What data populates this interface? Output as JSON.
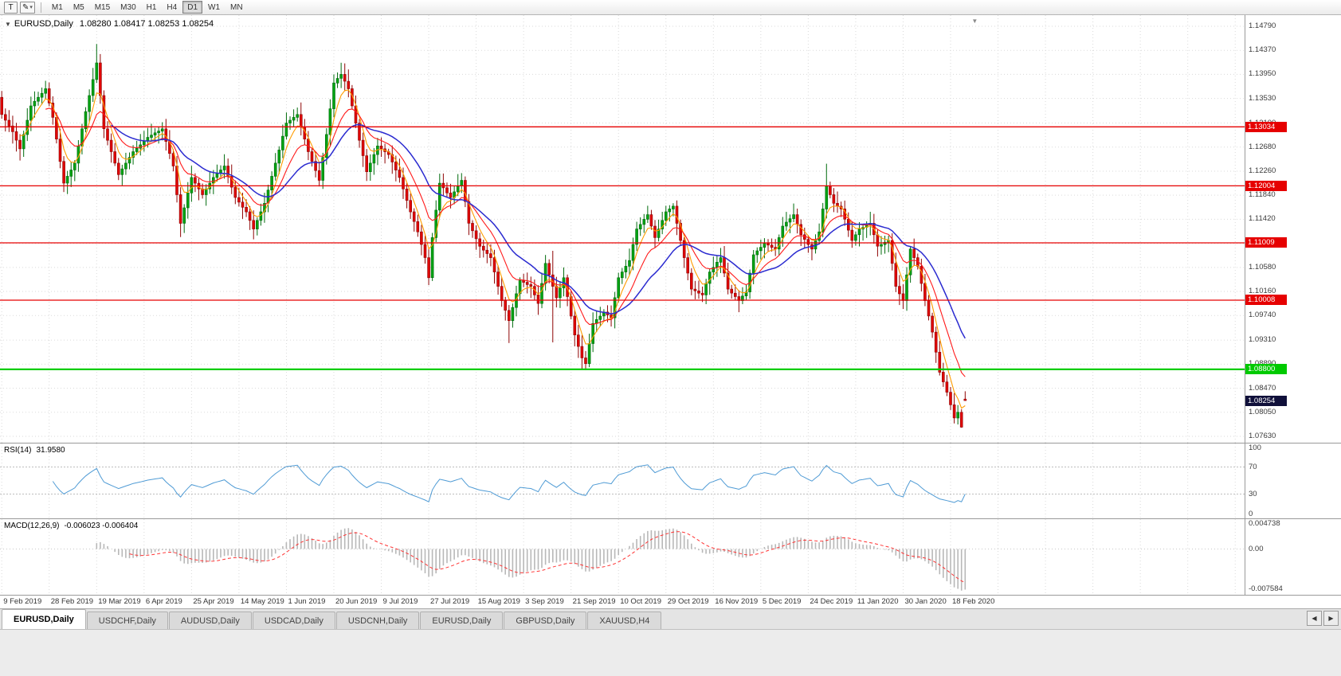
{
  "toolbar": {
    "template_button_label": "T",
    "draw_icon": "✎",
    "caret": "▾",
    "timeframes": [
      "M1",
      "M5",
      "M15",
      "M30",
      "H1",
      "H4",
      "D1",
      "W1",
      "MN"
    ],
    "active_timeframe": "D1"
  },
  "chart": {
    "menu_arrow": "▼",
    "symbol_period": "EURUSD,Daily",
    "ohlc_text": "1.08280 1.08417 1.08253 1.08254",
    "shift_marker": "▼"
  },
  "price_axis": {
    "labels": [
      "1.14790",
      "1.14370",
      "1.13950",
      "1.13530",
      "1.13100",
      "1.12680",
      "1.12260",
      "1.11840",
      "1.11420",
      "1.11000",
      "1.10580",
      "1.10160",
      "1.09740",
      "1.09310",
      "1.08890",
      "1.08470",
      "1.08050",
      "1.07630"
    ]
  },
  "levels": [
    {
      "price": 1.13034,
      "label": "1.13034",
      "color": "#e60000",
      "text_color": "#ffffff",
      "width": 1.3,
      "kind": "resistance"
    },
    {
      "price": 1.12004,
      "label": "1.12004",
      "color": "#e60000",
      "text_color": "#ffffff",
      "width": 1.3,
      "kind": "resistance"
    },
    {
      "price": 1.11009,
      "label": "1.11009",
      "color": "#e60000",
      "text_color": "#ffffff",
      "width": 1.3,
      "kind": "resistance"
    },
    {
      "price": 1.10008,
      "label": "1.10008",
      "color": "#e60000",
      "text_color": "#ffffff",
      "width": 1.3,
      "kind": "resistance"
    },
    {
      "price": 1.088,
      "label": "1.08800",
      "color": "#00ca00",
      "text_color": "#ffffff",
      "width": 2.2,
      "kind": "support"
    }
  ],
  "current_price": {
    "value": 1.08254,
    "label": "1.08254",
    "bg": "#10103a",
    "text_color": "#ffffff"
  },
  "indicators": {
    "rsi": {
      "name": "RSI(14)",
      "value": "31.9580",
      "period": 14,
      "color": "#4f9bd5",
      "axis_labels": [
        "100",
        "70",
        "30",
        "0"
      ],
      "axis_values": [
        100,
        70,
        30,
        0
      ],
      "level_lines": [
        70,
        30
      ],
      "range": [
        0,
        100
      ]
    },
    "macd": {
      "name": "MACD(12,26,9)",
      "value": "-0.006023 -0.006404",
      "fast": 12,
      "slow": 26,
      "signal": 9,
      "axis_labels": [
        "0.004738",
        "0.00",
        "-0.007584"
      ],
      "axis_values": [
        0.004738,
        0,
        -0.007584
      ],
      "range": [
        -0.007584,
        0.004738
      ],
      "histogram_color": "#b8b8b8",
      "signal_color": "#ff3333"
    }
  },
  "moving_averages": [
    {
      "name": "fast-ma",
      "period": 5,
      "method": "ema",
      "color": "#ff9c00",
      "width": 1.1
    },
    {
      "name": "mid-ma",
      "period": 12,
      "method": "ema",
      "color": "#ff1a1a",
      "width": 1.1
    },
    {
      "name": "slow-ma",
      "period": 30,
      "method": "wma",
      "color": "#2b2bd0",
      "width": 1.5
    }
  ],
  "chart_data": {
    "type": "candlestick",
    "symbol": "EURUSD",
    "timeframe": "Daily",
    "y_range": [
      1.0763,
      1.1479
    ],
    "up_color": "#00a312",
    "down_color": "#e00707",
    "time_labels": [
      "9 Feb 2019",
      "28 Feb 2019",
      "19 Mar 2019",
      "6 Apr 2019",
      "25 Apr 2019",
      "14 May 2019",
      "1 Jun 2019",
      "20 Jun 2019",
      "9 Jul 2019",
      "27 Jul 2019",
      "15 Aug 2019",
      "3 Sep 2019",
      "21 Sep 2019",
      "10 Oct 2019",
      "29 Oct 2019",
      "16 Nov 2019",
      "5 Dec 2019",
      "24 Dec 2019",
      "11 Jan 2020",
      "30 Jan 2020",
      "18 Feb 2020"
    ],
    "bars_per_tick": 13,
    "first_open": 1.1355,
    "closes": [
      1.1325,
      1.1315,
      1.1305,
      1.1295,
      1.128,
      1.1265,
      1.129,
      1.1315,
      1.134,
      1.1348,
      1.1355,
      1.1362,
      1.137,
      1.1345,
      1.132,
      1.1282,
      1.1243,
      1.1205,
      1.1217,
      1.1228,
      1.124,
      1.127,
      1.13,
      1.133,
      1.1358,
      1.1386,
      1.1415,
      1.1358,
      1.13,
      1.128,
      1.126,
      1.124,
      1.122,
      1.123,
      1.124,
      1.125,
      1.126,
      1.1266,
      1.1272,
      1.1279,
      1.1285,
      1.1289,
      1.1293,
      1.1296,
      1.13,
      1.1278,
      1.1257,
      1.1235,
      1.1185,
      1.1135,
      1.1162,
      1.1188,
      1.1215,
      1.1205,
      1.1195,
      1.1185,
      1.1195,
      1.1205,
      1.1215,
      1.1222,
      1.1228,
      1.1235,
      1.1217,
      1.1198,
      1.118,
      1.1172,
      1.1163,
      1.1155,
      1.114,
      1.1125,
      1.114,
      1.1155,
      1.117,
      1.1193,
      1.1217,
      1.124,
      1.1263,
      1.1287,
      1.131,
      1.1315,
      1.132,
      1.1325,
      1.1303,
      1.1282,
      1.126,
      1.1243,
      1.1227,
      1.121,
      1.125,
      1.129,
      1.1335,
      1.138,
      1.1388,
      1.1395,
      1.1383,
      1.137,
      1.134,
      1.131,
      1.128,
      1.1253,
      1.1225,
      1.124,
      1.1255,
      1.127,
      1.1265,
      1.126,
      1.1255,
      1.1242,
      1.1228,
      1.1215,
      1.1195,
      1.1175,
      1.1155,
      1.1138,
      1.112,
      1.1098,
      1.1075,
      1.104,
      1.111,
      1.1158,
      1.1205,
      1.1197,
      1.1188,
      1.118,
      1.119,
      1.12,
      1.121,
      1.1173,
      1.1135,
      1.1122,
      1.1108,
      1.1095,
      1.1088,
      1.1082,
      1.1075,
      1.105,
      1.1025,
      1.1,
      1.0983,
      1.0965,
      1.0988,
      1.1012,
      1.1035,
      1.1032,
      1.1028,
      1.1025,
      1.101,
      1.0995,
      1.103,
      1.1065,
      1.1045,
      1.1025,
      1.1005,
      1.1022,
      1.104,
      1.1007,
      1.0973,
      1.094,
      1.092,
      1.09,
      1.089,
      1.0925,
      1.096,
      1.0967,
      1.0973,
      1.098,
      1.0975,
      1.097,
      1.1005,
      1.104,
      1.105,
      1.106,
      1.107,
      1.1098,
      1.1125,
      1.1133,
      1.1142,
      1.115,
      1.113,
      1.111,
      1.1125,
      1.114,
      1.1155,
      1.116,
      1.1165,
      1.1135,
      1.1105,
      1.1075,
      1.1048,
      1.102,
      1.1017,
      1.1013,
      1.101,
      1.103,
      1.105,
      1.1058,
      1.1067,
      1.1075,
      1.1048,
      1.102,
      1.1013,
      1.1007,
      1.1,
      1.1008,
      1.1015,
      1.1048,
      1.108,
      1.1087,
      1.1093,
      1.11,
      1.1097,
      1.1093,
      1.109,
      1.111,
      1.113,
      1.1137,
      1.1143,
      1.115,
      1.1133,
      1.1115,
      1.1107,
      1.1098,
      1.109,
      1.1105,
      1.112,
      1.116,
      1.12,
      1.1185,
      1.117,
      1.1165,
      1.116,
      1.1142,
      1.1123,
      1.1105,
      1.1115,
      1.1125,
      1.1128,
      1.1132,
      1.1135,
      1.1115,
      1.1095,
      1.1098,
      1.1102,
      1.1105,
      1.1065,
      1.1025,
      1.1012,
      1.1,
      1.1045,
      1.109,
      1.1075,
      1.106,
      1.103,
      1.1,
      1.0973,
      1.0945,
      1.091,
      1.0875,
      1.0858,
      1.084,
      1.0818,
      1.0795,
      1.0805,
      1.0779,
      1.08254
    ],
    "wick_overrides": {
      "0": {
        "o": 1.1355
      },
      "26": {
        "h": 1.1448
      },
      "49": {
        "l": 1.1111
      },
      "69": {
        "l": 1.1107
      },
      "117": {
        "l": 1.1027
      },
      "139": {
        "l": 1.0926
      },
      "151": {
        "h": 1.1087,
        "l": 1.0927
      },
      "160": {
        "l": 1.0879
      },
      "226": {
        "h": 1.1239
      },
      "249": {
        "h": 1.1095
      },
      "263": {
        "l": 1.0778
      },
      "264": {
        "o": 1.0828,
        "h": 1.08417,
        "l": 1.08253,
        "c": 1.08254
      }
    }
  },
  "tabs": {
    "scroll_left_icon": "◀",
    "scroll_right_icon": "▶",
    "items": [
      {
        "label": "EURUSD,Daily",
        "active": true
      },
      {
        "label": "USDCHF,Daily",
        "active": false
      },
      {
        "label": "AUDUSD,Daily",
        "active": false
      },
      {
        "label": "USDCAD,Daily",
        "active": false
      },
      {
        "label": "USDCNH,Daily",
        "active": false
      },
      {
        "label": "EURUSD,Daily",
        "active": false
      },
      {
        "label": "GBPUSD,Daily",
        "active": false
      },
      {
        "label": "XAUUSD,H4",
        "active": false
      }
    ]
  }
}
